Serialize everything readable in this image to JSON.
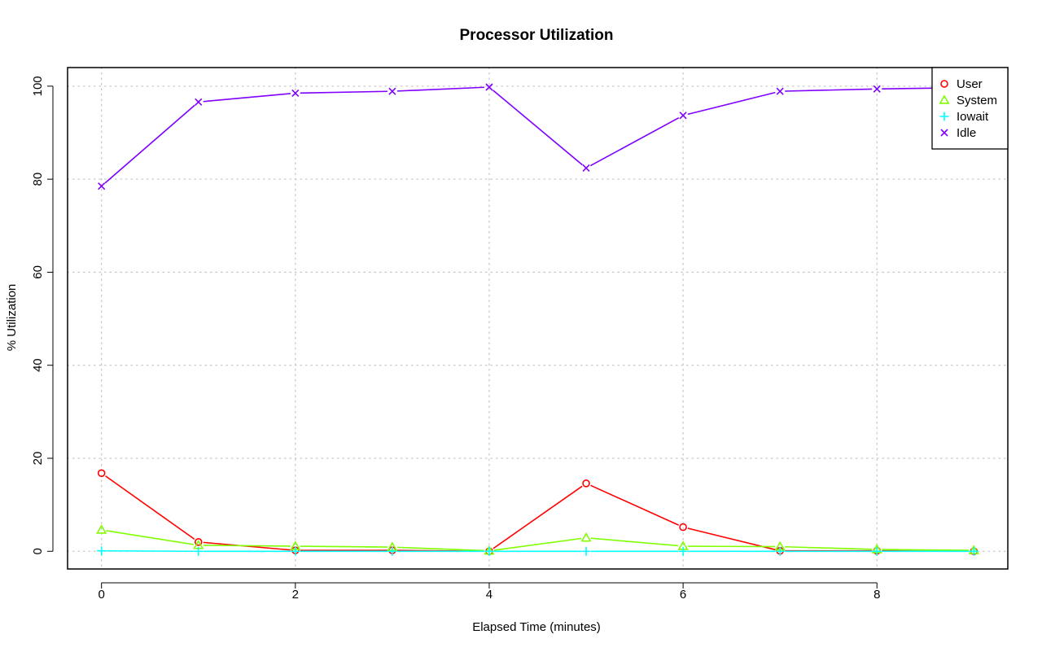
{
  "chart_data": {
    "type": "line",
    "title": "Processor Utilization",
    "xlabel": "Elapsed Time (minutes)",
    "ylabel": "% Utilization",
    "xlim": [
      -0.35,
      9.35
    ],
    "ylim": [
      -3.8,
      104
    ],
    "x_ticks": [
      0,
      2,
      4,
      6,
      8
    ],
    "y_ticks": [
      0,
      20,
      40,
      60,
      80,
      100
    ],
    "grid": true,
    "legend_position": "top-right",
    "x": [
      0,
      1,
      2,
      3,
      4,
      5,
      6,
      7,
      8,
      9
    ],
    "series": [
      {
        "name": "User",
        "color": "#ff0000",
        "marker": "circle",
        "values": [
          16.8,
          2.0,
          0.2,
          0.2,
          0.0,
          14.6,
          5.2,
          0.1,
          0.1,
          0.0
        ]
      },
      {
        "name": "System",
        "color": "#80ff00",
        "marker": "triangle",
        "values": [
          4.6,
          1.3,
          1.1,
          0.9,
          0.1,
          2.9,
          1.1,
          1.0,
          0.4,
          0.2
        ]
      },
      {
        "name": "Iowait",
        "color": "#00ffff",
        "marker": "plus",
        "values": [
          0.1,
          0.0,
          0.0,
          0.0,
          0.0,
          0.0,
          0.0,
          0.0,
          0.0,
          0.0
        ]
      },
      {
        "name": "Idle",
        "color": "#8000ff",
        "marker": "x",
        "values": [
          78.5,
          96.6,
          98.5,
          98.9,
          99.8,
          82.4,
          93.7,
          98.9,
          99.4,
          99.7
        ]
      }
    ]
  }
}
